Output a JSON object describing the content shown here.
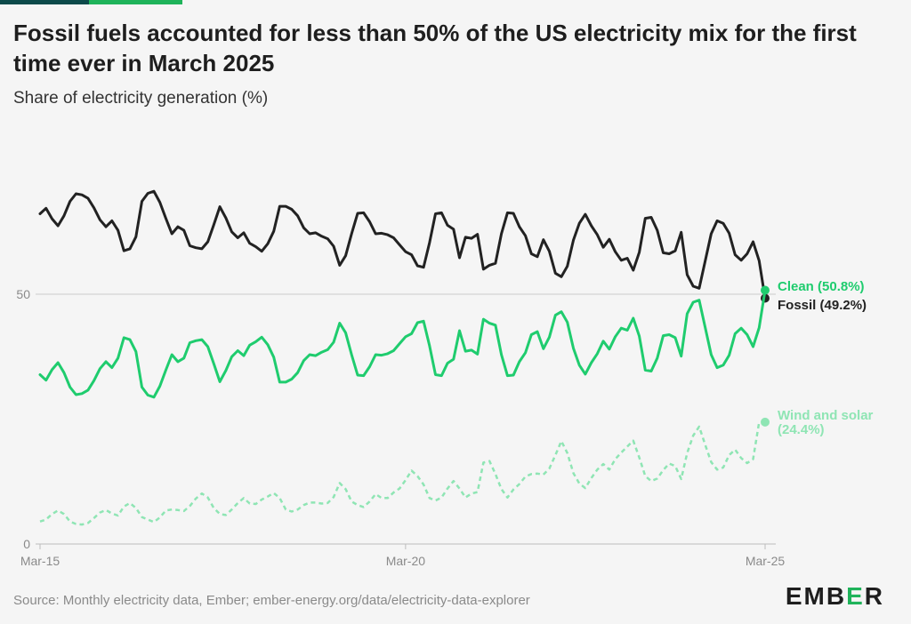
{
  "header": {
    "title": "Fossil fuels accounted for less than 50% of the US electricity mix for the first time ever in March 2025",
    "subtitle": "Share of electricity generation (%)"
  },
  "footer": {
    "source": "Source: Monthly electricity data, Ember; ember-energy.org/data/electricity-data-explorer",
    "logo_text": "EMBER"
  },
  "colors": {
    "fossil": "#222222",
    "clean": "#1fcc6e",
    "wind_solar": "#8fe5b4",
    "reference": "#cccccc",
    "axis_text": "#8a8a8a"
  },
  "chart_data": {
    "type": "line",
    "x_start": "Mar-15",
    "x_end": "Mar-25",
    "x_ticks": [
      "Mar-15",
      "Mar-20",
      "Mar-25"
    ],
    "y_ticks": [
      0,
      50
    ],
    "ylim": [
      0,
      80
    ],
    "reference_line": 50,
    "series": [
      {
        "name": "Fossil",
        "end_label": "Fossil (49.2%)",
        "style": "solid",
        "values": [
          66.1,
          67.2,
          65.1,
          63.7,
          65.7,
          68.6,
          70.1,
          69.9,
          69.2,
          67.3,
          64.9,
          63.5,
          64.7,
          62.8,
          58.7,
          59.1,
          61.5,
          68.6,
          70.2,
          70.6,
          68.4,
          65.2,
          62.1,
          63.5,
          62.8,
          59.7,
          59.3,
          59.1,
          60.5,
          63.9,
          67.5,
          65.3,
          62.5,
          61.3,
          62.3,
          60.2,
          59.5,
          58.6,
          60.1,
          62.6,
          67.6,
          67.6,
          67.0,
          65.7,
          63.3,
          62.1,
          62.3,
          61.6,
          61.1,
          59.6,
          55.8,
          57.7,
          62.1,
          66.2,
          66.3,
          64.5,
          62.1,
          62.2,
          61.9,
          61.3,
          59.9,
          58.5,
          57.9,
          55.7,
          55.4,
          60.3,
          66.1,
          66.3,
          63.8,
          63.0,
          57.3,
          61.4,
          61.2,
          62.0,
          55.0,
          55.8,
          56.2,
          62.1,
          66.3,
          66.2,
          63.5,
          61.7,
          58.1,
          57.5,
          60.9,
          58.6,
          54.2,
          53.5,
          55.6,
          60.8,
          64.2,
          66.0,
          63.7,
          61.9,
          59.4,
          61.0,
          58.5,
          56.8,
          57.2,
          54.8,
          58.4,
          65.2,
          65.4,
          62.8,
          58.3,
          58.1,
          58.7,
          62.4,
          53.9,
          51.6,
          51.2,
          56.6,
          62.1,
          64.7,
          64.2,
          62.2,
          57.9,
          56.8,
          58.1,
          60.5,
          56.7,
          49.2
        ]
      },
      {
        "name": "Clean",
        "end_label": "Clean (50.8%)",
        "style": "solid",
        "values": [
          33.9,
          32.8,
          34.9,
          36.3,
          34.3,
          31.4,
          29.9,
          30.1,
          30.8,
          32.7,
          35.1,
          36.5,
          35.3,
          37.2,
          41.3,
          40.9,
          38.5,
          31.4,
          29.8,
          29.4,
          31.6,
          34.8,
          37.9,
          36.5,
          37.2,
          40.3,
          40.7,
          40.9,
          39.5,
          36.1,
          32.5,
          34.7,
          37.5,
          38.7,
          37.7,
          39.8,
          40.5,
          41.4,
          39.9,
          37.4,
          32.4,
          32.4,
          33.0,
          34.3,
          36.7,
          37.9,
          37.7,
          38.4,
          38.9,
          40.4,
          44.2,
          42.3,
          37.9,
          33.8,
          33.7,
          35.5,
          37.9,
          37.8,
          38.1,
          38.7,
          40.1,
          41.5,
          42.1,
          44.3,
          44.6,
          39.7,
          33.9,
          33.7,
          36.2,
          37.0,
          42.7,
          38.6,
          38.8,
          38.0,
          45.0,
          44.2,
          43.8,
          37.9,
          33.7,
          33.8,
          36.5,
          38.3,
          41.9,
          42.5,
          39.1,
          41.4,
          45.8,
          46.5,
          44.4,
          39.2,
          35.8,
          34.0,
          36.3,
          38.1,
          40.6,
          39.0,
          41.5,
          43.2,
          42.8,
          45.2,
          41.6,
          34.8,
          34.6,
          37.2,
          41.7,
          41.9,
          41.3,
          37.6,
          46.1,
          48.4,
          48.8,
          43.4,
          37.9,
          35.3,
          35.8,
          37.8,
          42.1,
          43.2,
          41.9,
          39.5,
          43.3,
          50.8
        ]
      },
      {
        "name": "Wind and solar",
        "end_label": "Wind and solar (24.4%)",
        "style": "dashed",
        "values": [
          4.5,
          4.9,
          6.0,
          6.7,
          6.0,
          4.5,
          4.0,
          3.9,
          4.2,
          5.2,
          6.3,
          6.8,
          6.1,
          5.7,
          7.5,
          8.2,
          7.2,
          5.4,
          4.9,
          4.4,
          5.3,
          6.7,
          6.9,
          6.8,
          6.6,
          7.6,
          9.1,
          10.1,
          9.3,
          7.2,
          6.0,
          5.8,
          6.9,
          8.2,
          9.2,
          8.1,
          8.0,
          8.9,
          9.5,
          10.2,
          9.2,
          6.9,
          6.5,
          6.9,
          7.8,
          8.3,
          8.3,
          8.1,
          8.2,
          9.4,
          12.2,
          11.0,
          8.5,
          7.8,
          7.4,
          8.5,
          10.0,
          9.2,
          9.2,
          10.3,
          11.1,
          12.8,
          14.7,
          13.6,
          11.9,
          9.2,
          8.7,
          9.3,
          11.1,
          12.6,
          11.1,
          9.3,
          10.1,
          10.4,
          16.3,
          16.6,
          14.0,
          11.0,
          9.3,
          10.9,
          12.0,
          13.5,
          14.0,
          14.1,
          13.9,
          15.1,
          17.8,
          20.6,
          18.2,
          14.2,
          12.1,
          11.2,
          13.2,
          14.9,
          16.0,
          14.9,
          17.0,
          18.3,
          19.5,
          20.7,
          17.3,
          13.6,
          12.6,
          13.1,
          14.8,
          16.1,
          15.6,
          13.0,
          18.2,
          21.7,
          23.5,
          19.9,
          16.4,
          14.9,
          15.3,
          17.8,
          18.9,
          17.2,
          16.2,
          17.0,
          24.4
        ]
      }
    ]
  }
}
